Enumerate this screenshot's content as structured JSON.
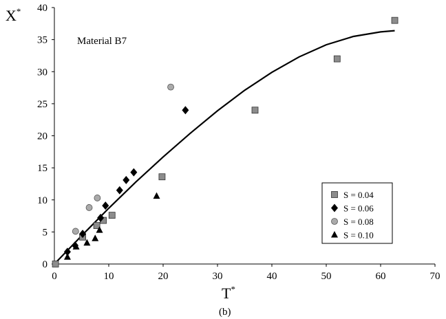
{
  "chart_data": {
    "type": "scatter",
    "annotation": "Material B7",
    "xlabel": "T",
    "xlabel_sup": "*",
    "ylabel": "X",
    "ylabel_sup": "*",
    "caption": "(b)",
    "xlim": [
      0,
      70
    ],
    "ylim": [
      0,
      40
    ],
    "xticks": [
      0,
      10,
      20,
      30,
      40,
      50,
      60,
      70
    ],
    "yticks": [
      0,
      5,
      10,
      15,
      20,
      25,
      30,
      35,
      40
    ],
    "grid": false,
    "legend_position": "right",
    "series": [
      {
        "name": "S = 0.04",
        "marker": "square",
        "color": "#8c8c8c",
        "points": [
          [
            0.2,
            0
          ],
          [
            5.2,
            4.2
          ],
          [
            7.8,
            6.0
          ],
          [
            9.0,
            6.8
          ],
          [
            10.6,
            7.6
          ],
          [
            19.8,
            13.6
          ],
          [
            36.9,
            24.0
          ],
          [
            52.0,
            32.0
          ],
          [
            62.6,
            38.0
          ]
        ]
      },
      {
        "name": "S = 0.06",
        "marker": "diamond",
        "color": "#000000",
        "points": [
          [
            2.4,
            1.9
          ],
          [
            3.8,
            2.9
          ],
          [
            5.2,
            4.7
          ],
          [
            8.5,
            7.2
          ],
          [
            9.4,
            9.1
          ],
          [
            12.0,
            11.5
          ],
          [
            13.2,
            13.1
          ],
          [
            14.6,
            14.3
          ],
          [
            24.1,
            24.0
          ]
        ]
      },
      {
        "name": "S = 0.08",
        "marker": "circle",
        "color": "#aaaaaa",
        "points": [
          [
            3.9,
            5.1
          ],
          [
            6.4,
            8.8
          ],
          [
            7.9,
            10.3
          ],
          [
            21.4,
            27.6
          ]
        ]
      },
      {
        "name": "S = 0.10",
        "marker": "triangle",
        "color": "#000000",
        "points": [
          [
            2.4,
            1.1
          ],
          [
            4.0,
            2.7
          ],
          [
            6.0,
            3.3
          ],
          [
            7.5,
            4.0
          ],
          [
            8.3,
            5.3
          ],
          [
            18.8,
            10.6
          ]
        ]
      }
    ],
    "fit_line": {
      "color": "#000000",
      "points": [
        [
          0,
          0
        ],
        [
          5,
          4.4
        ],
        [
          10,
          8.7
        ],
        [
          15,
          12.8
        ],
        [
          20,
          16.7
        ],
        [
          25,
          20.4
        ],
        [
          30,
          23.9
        ],
        [
          35,
          27.1
        ],
        [
          40,
          29.9
        ],
        [
          45,
          32.3
        ],
        [
          50,
          34.2
        ],
        [
          55,
          35.5
        ],
        [
          60,
          36.2
        ],
        [
          62.6,
          36.4
        ]
      ]
    }
  }
}
